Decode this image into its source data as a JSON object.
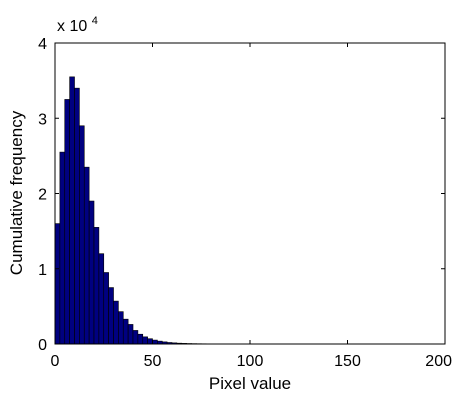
{
  "chart_data": {
    "type": "bar",
    "title": "",
    "xlabel": "Pixel value",
    "ylabel": "Cumulative frequency",
    "xlim": [
      0,
      200
    ],
    "ylim": [
      0,
      40000
    ],
    "x_ticks": [
      0,
      50,
      100,
      150,
      200
    ],
    "y_ticks": [
      0,
      1,
      2,
      3,
      4
    ],
    "y_multiplier_base": "x 10",
    "y_multiplier_exponent": "4",
    "bar_color": "#000080",
    "bar_edge_color": "#000000",
    "grid": false,
    "bin_width": 2.5,
    "x": [
      1.25,
      3.75,
      6.25,
      8.75,
      11.25,
      13.75,
      16.25,
      18.75,
      21.25,
      23.75,
      26.25,
      28.75,
      31.25,
      33.75,
      36.25,
      38.75,
      41.25,
      43.75,
      46.25,
      48.75,
      51.25,
      53.75,
      56.25,
      58.75,
      61.25,
      63.75,
      66.25,
      68.75,
      71.25,
      73.75,
      76.25,
      78.75,
      81.25,
      83.75,
      86.25,
      88.75,
      91.25,
      93.75,
      96.25,
      98.75,
      101.25,
      103.75,
      106.25,
      108.75,
      111.25
    ],
    "values": [
      16000,
      25500,
      32500,
      35500,
      34000,
      29000,
      23500,
      19000,
      15500,
      12000,
      9500,
      7500,
      5700,
      4300,
      3300,
      2600,
      1800,
      1300,
      950,
      700,
      520,
      380,
      280,
      200,
      150,
      110,
      85,
      65,
      50,
      40,
      32,
      26,
      22,
      18,
      15,
      12,
      10,
      9,
      8,
      7,
      6,
      5,
      4,
      3,
      2
    ]
  }
}
